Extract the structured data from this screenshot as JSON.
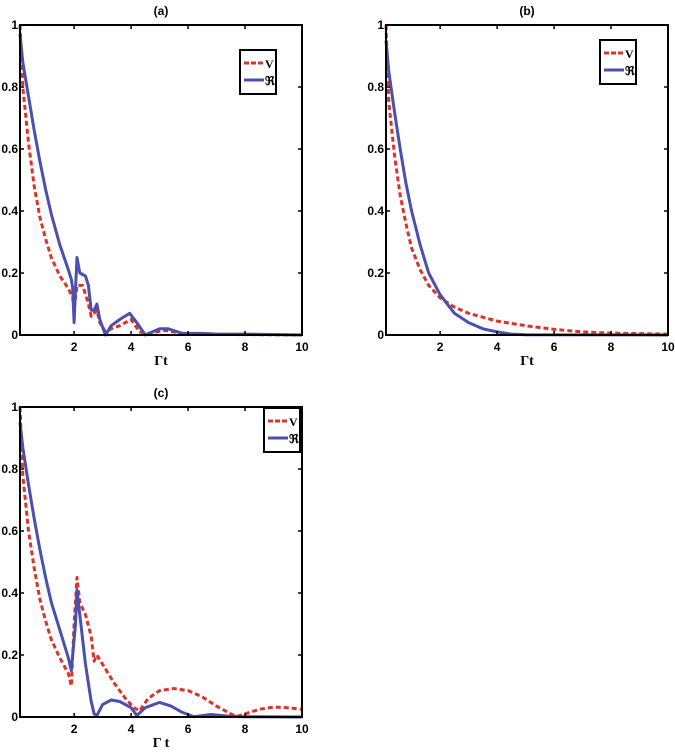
{
  "chart_data": [
    {
      "type": "line",
      "title": "(a)",
      "xlabel": "Γt",
      "ylabel": "",
      "xlim": [
        0.1,
        10
      ],
      "ylim": [
        0,
        1
      ],
      "xticks": [
        "2",
        "4",
        "6",
        "8",
        "10"
      ],
      "yticks": [
        "0",
        "0.2",
        "0.4",
        "0.6",
        "0.8",
        "1"
      ],
      "grid": false,
      "legend_position": "top-right",
      "series": [
        {
          "name": "V",
          "color": "#d9342b",
          "style": "dashed",
          "x": [
            0.1,
            0.2,
            0.4,
            0.6,
            0.8,
            1.0,
            1.2,
            1.5,
            1.8,
            1.95,
            2.0,
            2.1,
            2.3,
            2.5,
            2.6,
            2.8,
            2.9,
            3.1,
            3.3,
            3.6,
            4.0,
            4.3,
            4.6,
            5.2,
            5.8,
            7,
            10
          ],
          "y": [
            1.0,
            0.8,
            0.62,
            0.48,
            0.38,
            0.31,
            0.25,
            0.19,
            0.15,
            0.12,
            0.08,
            0.16,
            0.16,
            0.1,
            0.06,
            0.08,
            0.04,
            0.01,
            0.02,
            0.03,
            0.05,
            0.01,
            0.005,
            0.015,
            0.005,
            0.002,
            0
          ]
        },
        {
          "name": "ℜ",
          "color": "#4b4fae",
          "style": "solid",
          "x": [
            0.1,
            0.2,
            0.4,
            0.6,
            0.8,
            1.0,
            1.2,
            1.5,
            1.8,
            1.9,
            1.95,
            2.0,
            2.05,
            2.1,
            2.2,
            2.4,
            2.5,
            2.6,
            2.7,
            2.8,
            2.9,
            3.1,
            3.3,
            3.6,
            3.95,
            4.2,
            4.5,
            5.0,
            5.3,
            5.8,
            6.5,
            7,
            8,
            10
          ],
          "y": [
            0.97,
            0.88,
            0.77,
            0.66,
            0.56,
            0.47,
            0.39,
            0.29,
            0.21,
            0.18,
            0.15,
            0.04,
            0.15,
            0.25,
            0.2,
            0.19,
            0.16,
            0.08,
            0.08,
            0.1,
            0.05,
            0.0,
            0.03,
            0.05,
            0.07,
            0.04,
            0.0,
            0.02,
            0.02,
            0.005,
            0.005,
            0.003,
            0.003,
            0
          ]
        }
      ]
    },
    {
      "type": "line",
      "title": "(b)",
      "xlabel": "Γt",
      "ylabel": "",
      "xlim": [
        0.1,
        10
      ],
      "ylim": [
        0,
        1
      ],
      "xticks": [
        "2",
        "4",
        "6",
        "8",
        "10"
      ],
      "yticks": [
        "0",
        "0.2",
        "0.4",
        "0.6",
        "0.8",
        "1"
      ],
      "grid": false,
      "legend_position": "top-right",
      "series": [
        {
          "name": "V",
          "color": "#d9342b",
          "style": "dashed",
          "x": [
            0.1,
            0.2,
            0.4,
            0.6,
            0.8,
            1.0,
            1.3,
            1.6,
            2,
            2.5,
            3,
            4,
            5,
            6,
            7,
            8,
            10
          ],
          "y": [
            1.0,
            0.75,
            0.58,
            0.45,
            0.36,
            0.28,
            0.21,
            0.16,
            0.12,
            0.09,
            0.07,
            0.045,
            0.03,
            0.018,
            0.01,
            0.006,
            0.003
          ]
        },
        {
          "name": "ℜ",
          "color": "#4b4fae",
          "style": "solid",
          "x": [
            0.1,
            0.2,
            0.4,
            0.6,
            0.8,
            1.0,
            1.3,
            1.6,
            2,
            2.5,
            3,
            3.5,
            4,
            4.5,
            5,
            10
          ],
          "y": [
            0.95,
            0.85,
            0.72,
            0.6,
            0.49,
            0.4,
            0.29,
            0.2,
            0.13,
            0.07,
            0.04,
            0.02,
            0.01,
            0.003,
            0.001,
            0
          ]
        }
      ]
    },
    {
      "type": "line",
      "title": "(c)",
      "xlabel": "Γ t",
      "ylabel": "",
      "xlim": [
        0.1,
        10
      ],
      "ylim": [
        0,
        1
      ],
      "xticks": [
        "2",
        "4",
        "6",
        "8",
        "10"
      ],
      "yticks": [
        "0",
        "0.2",
        "0.4",
        "0.6",
        "0.8",
        "1"
      ],
      "grid": false,
      "legend_position": "top-right",
      "series": [
        {
          "name": "V",
          "color": "#d9342b",
          "style": "dashed",
          "x": [
            0.1,
            0.2,
            0.4,
            0.6,
            0.8,
            1.0,
            1.2,
            1.5,
            1.8,
            1.9,
            2.0,
            2.1,
            2.2,
            2.4,
            2.6,
            2.7,
            2.8,
            3.0,
            3.4,
            3.8,
            4.1,
            4.3,
            4.6,
            5.0,
            5.5,
            6.0,
            6.5,
            7.0,
            7.5,
            7.7,
            8.0,
            8.5,
            9.0,
            9.5,
            10
          ],
          "y": [
            1.0,
            0.78,
            0.6,
            0.48,
            0.38,
            0.31,
            0.25,
            0.19,
            0.14,
            0.1,
            0.3,
            0.45,
            0.37,
            0.33,
            0.26,
            0.18,
            0.2,
            0.17,
            0.11,
            0.06,
            0.03,
            0.02,
            0.06,
            0.085,
            0.092,
            0.085,
            0.065,
            0.035,
            0.01,
            0.002,
            0.01,
            0.025,
            0.032,
            0.03,
            0.025
          ]
        },
        {
          "name": "ℜ",
          "color": "#4b4fae",
          "style": "solid",
          "x": [
            0.1,
            0.2,
            0.4,
            0.6,
            0.8,
            1.0,
            1.2,
            1.5,
            1.8,
            1.9,
            2.05,
            2.1,
            2.2,
            2.4,
            2.6,
            2.7,
            2.8,
            3.0,
            3.3,
            3.6,
            4.0,
            4.2,
            4.5,
            5.0,
            5.4,
            5.8,
            6.2,
            6.8,
            7.5,
            8,
            10
          ],
          "y": [
            0.95,
            0.87,
            0.75,
            0.64,
            0.54,
            0.45,
            0.37,
            0.28,
            0.19,
            0.15,
            0.3,
            0.41,
            0.33,
            0.17,
            0.05,
            0.01,
            0.005,
            0.04,
            0.055,
            0.05,
            0.03,
            0.005,
            0.03,
            0.047,
            0.035,
            0.015,
            0.001,
            0.008,
            0.002,
            0.001,
            0
          ]
        }
      ]
    }
  ]
}
